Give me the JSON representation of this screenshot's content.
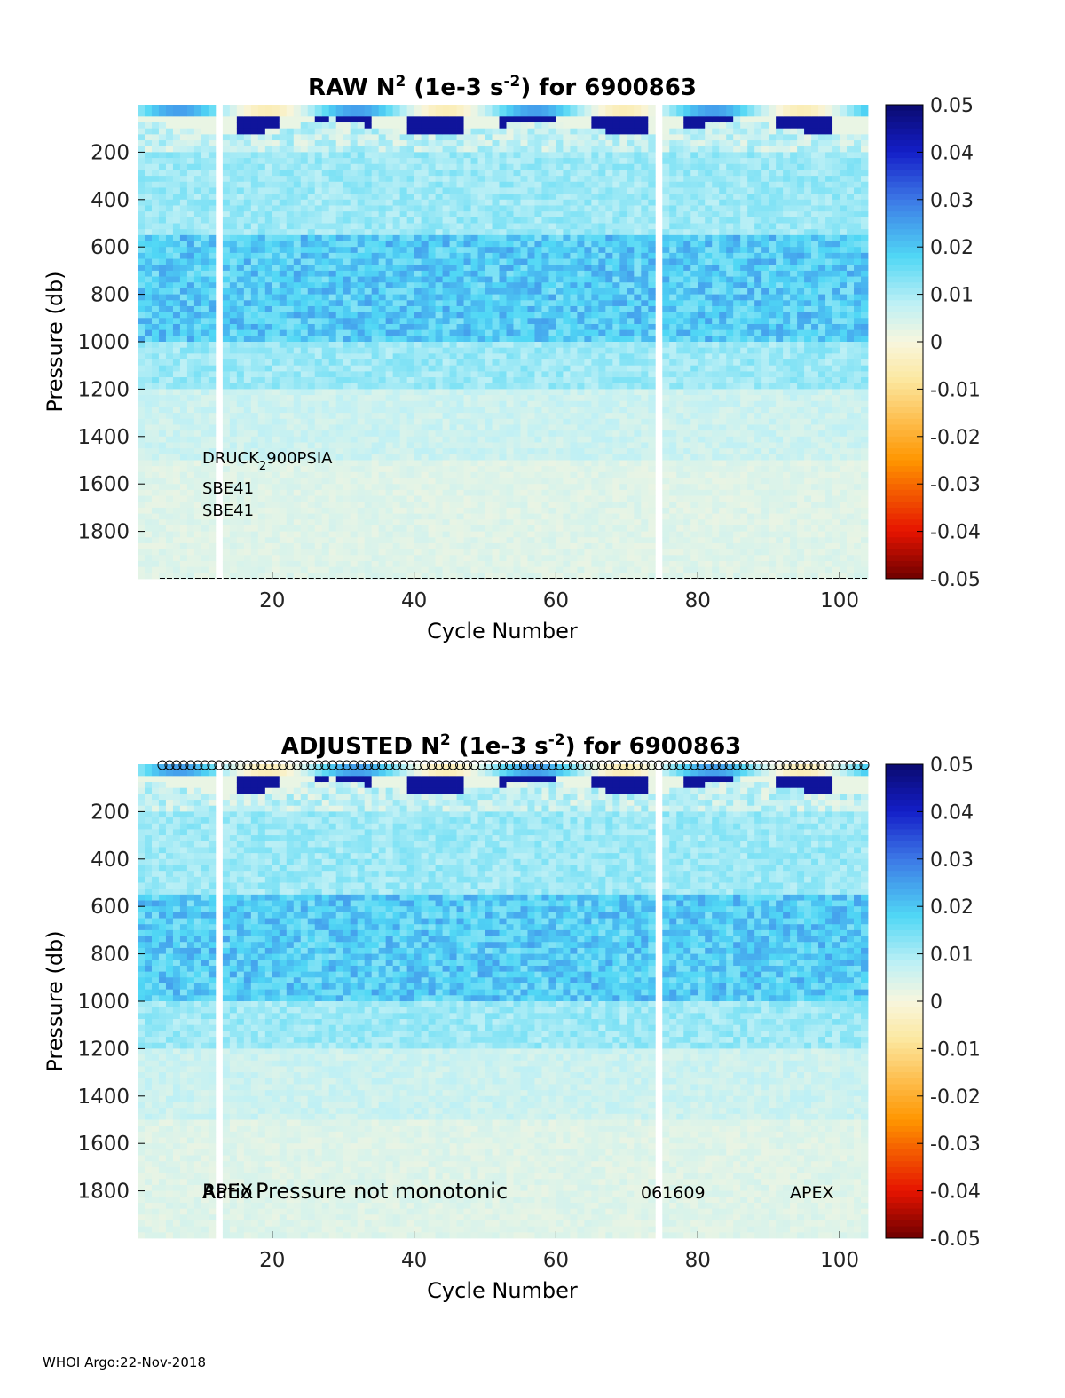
{
  "chart_data": [
    {
      "type": "heatmap",
      "title_prefix": "RAW N",
      "title_sup": "2",
      "title_mid": " (1e-3 s",
      "title_sup2": "-2",
      "title_suffix": ") for 6900863",
      "xlabel": "Cycle Number",
      "ylabel": "Pressure (db)",
      "xlim": [
        1,
        104
      ],
      "ylim": [
        0,
        2000
      ],
      "x_ticks": [
        20,
        40,
        60,
        80,
        100
      ],
      "y_ticks": [
        200,
        400,
        600,
        800,
        1000,
        1200,
        1400,
        1600,
        1800
      ],
      "colorbar": {
        "min": -0.05,
        "max": 0.05,
        "ticks": [
          "0.05",
          "0.04",
          "0.03",
          "0.02",
          "0.01",
          "0",
          "-0.01",
          "-0.02",
          "-0.03",
          "-0.04",
          "-0.05"
        ]
      },
      "missing_cycles": [
        12,
        74
      ],
      "annotations": [
        {
          "text": "DRUCK",
          "sub": "2",
          "rest": "900PSIA"
        },
        {
          "text": "SBE41"
        },
        {
          "text": "SBE41"
        }
      ],
      "cycle_markers": "bottom-dashes"
    },
    {
      "type": "heatmap",
      "title_prefix": "ADJUSTED N",
      "title_sup": "2",
      "title_mid": " (1e-3 s",
      "title_sup2": "-2",
      "title_suffix": ") for 6900863",
      "xlabel": "Cycle Number",
      "ylabel": "Pressure (db)",
      "xlim": [
        1,
        104
      ],
      "ylim": [
        0,
        2000
      ],
      "x_ticks": [
        20,
        40,
        60,
        80,
        100
      ],
      "y_ticks": [
        200,
        400,
        600,
        800,
        1000,
        1200,
        1400,
        1600,
        1800
      ],
      "colorbar": {
        "min": -0.05,
        "max": 0.05,
        "ticks": [
          "0.05",
          "0.04",
          "0.03",
          "0.02",
          "0.01",
          "0",
          "-0.01",
          "-0.02",
          "-0.03",
          "-0.04",
          "-0.05"
        ]
      },
      "missing_cycles": [
        12,
        74
      ],
      "annotations": [
        {
          "text": "APEX",
          "overlay": "Ratio"
        },
        {
          "text": "Pressure not monotonic"
        },
        {
          "text": "061609"
        },
        {
          "text": "APEX"
        }
      ],
      "cycle_markers": "top-circles"
    }
  ],
  "footer": "WHOI Argo:22-Nov-2018"
}
